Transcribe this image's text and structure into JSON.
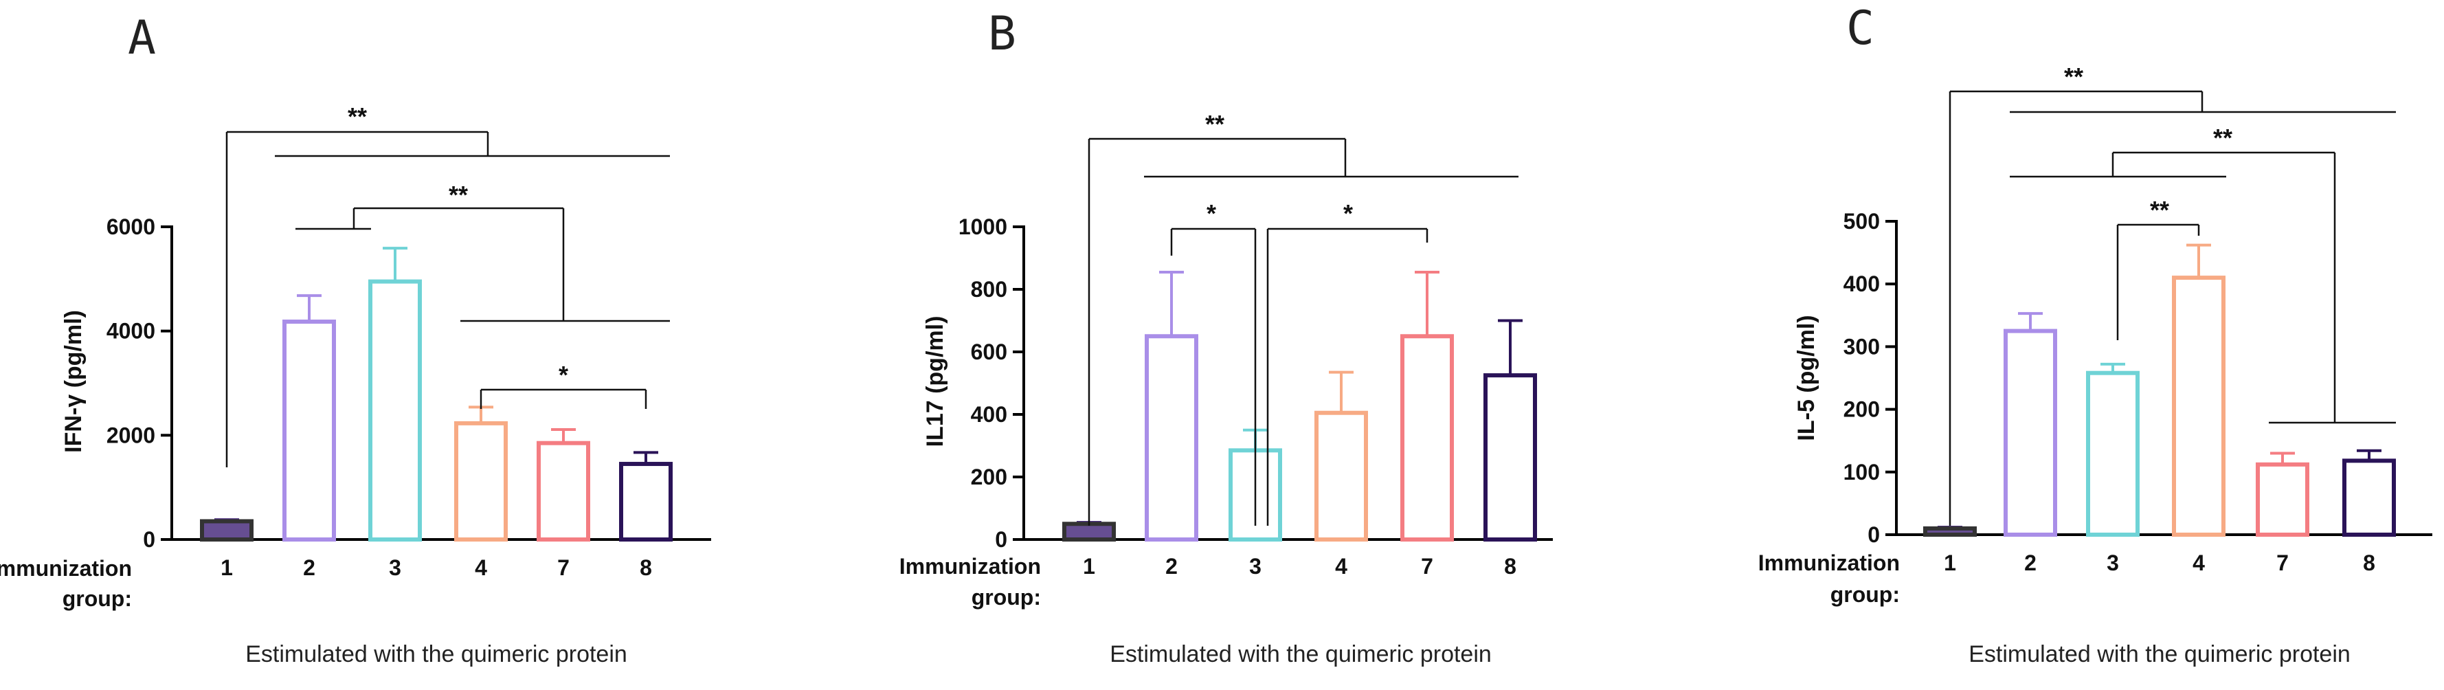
{
  "chart_data": [
    {
      "type": "bar",
      "panel": "A",
      "ylabel": "IFN-γ (pg/ml)",
      "group_label": [
        "Immunization",
        "group:"
      ],
      "xlabel": "Estimulated with the quimeric protein",
      "categories": [
        "1",
        "2",
        "3",
        "4",
        "7",
        "8"
      ],
      "values": [
        350,
        4180,
        4950,
        2230,
        1850,
        1450
      ],
      "errors": [
        30,
        500,
        640,
        310,
        260,
        220
      ],
      "colors": [
        "#4b2f7f",
        "#a98ee8",
        "#6fd3d6",
        "#f7aa84",
        "#f47d82",
        "#2a1358"
      ],
      "filled": [
        true,
        false,
        false,
        false,
        false,
        false
      ],
      "ylim": [
        0,
        6000
      ],
      "yticks": [
        0,
        2000,
        4000,
        6000
      ],
      "yticklabels": [
        "0",
        "2000",
        "4000",
        "6000"
      ],
      "significance": [
        {
          "label": "**",
          "type": "fan",
          "base": "1",
          "targets": [
            "2",
            "8"
          ],
          "y_base": 1500,
          "y_top": 7500,
          "y_span": 7400
        },
        {
          "label": "**",
          "type": "fan",
          "base": "3",
          "targets": [
            "2",
            "3"
          ],
          "from_left": true,
          "y_base": 5950,
          "y_top": 6350,
          "group_targets": [
            "4",
            "8"
          ],
          "y_group": 4200
        },
        {
          "label": "*",
          "type": "bracket",
          "from": "4",
          "to": "8",
          "y": 2900
        }
      ]
    },
    {
      "type": "bar",
      "panel": "B",
      "ylabel": "IL17 (pg/ml)",
      "group_label": [
        "Immunization",
        "group:"
      ],
      "xlabel": "Estimulated with the quimeric protein",
      "categories": [
        "1",
        "2",
        "3",
        "4",
        "7",
        "8"
      ],
      "values": [
        50,
        650,
        285,
        405,
        650,
        525
      ],
      "errors": [
        5,
        205,
        65,
        130,
        205,
        175
      ],
      "colors": [
        "#4b2f7f",
        "#a98ee8",
        "#6fd3d6",
        "#f7aa84",
        "#f47d82",
        "#2a1358"
      ],
      "filled": [
        true,
        false,
        false,
        false,
        false,
        false
      ],
      "ylim": [
        0,
        1000
      ],
      "yticks": [
        0,
        200,
        400,
        600,
        800,
        1000
      ],
      "yticklabels": [
        "0",
        "200",
        "400",
        "600",
        "800",
        "1000"
      ],
      "significance": [
        {
          "label": "**",
          "type": "fan_top",
          "y_base": 110,
          "y_top": 1270,
          "y_span": 1160
        },
        {
          "label": "*",
          "type": "bracket",
          "from": "2",
          "to": "3",
          "y": 990
        },
        {
          "label": "*",
          "type": "bracket",
          "from": "3",
          "to": "7",
          "y": 990
        }
      ]
    },
    {
      "type": "bar",
      "panel": "C",
      "ylabel": "IL-5 (pg/ml)",
      "group_label": [
        "Immunization",
        "group:"
      ],
      "xlabel": "Estimulated with the quimeric protein",
      "categories": [
        "1",
        "2",
        "3",
        "4",
        "7",
        "8"
      ],
      "values": [
        10,
        325,
        258,
        410,
        112,
        118
      ],
      "errors": [
        2,
        28,
        14,
        52,
        18,
        16
      ],
      "colors": [
        "#4b2f7f",
        "#a98ee8",
        "#6fd3d6",
        "#f7aa84",
        "#f47d82",
        "#2a1358"
      ],
      "filled": [
        true,
        false,
        false,
        false,
        false,
        false
      ],
      "ylim": [
        0,
        500
      ],
      "yticks": [
        0,
        100,
        200,
        300,
        400,
        500
      ],
      "yticklabels": [
        "0",
        "100",
        "200",
        "300",
        "400",
        "500"
      ],
      "significance": [
        {
          "label": "**"
        },
        {
          "label": "**"
        },
        {
          "label": "**"
        }
      ]
    }
  ]
}
